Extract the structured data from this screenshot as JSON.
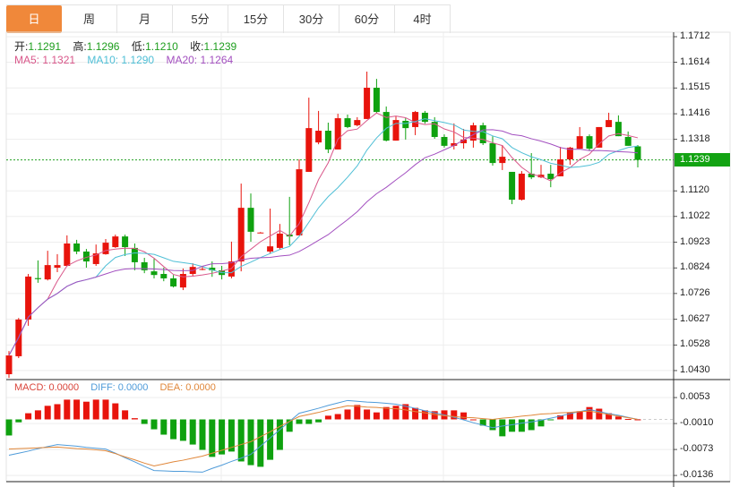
{
  "tabs": [
    {
      "label": "日",
      "active": true
    },
    {
      "label": "周"
    },
    {
      "label": "月"
    },
    {
      "label": "5分"
    },
    {
      "label": "15分"
    },
    {
      "label": "30分"
    },
    {
      "label": "60分"
    },
    {
      "label": "4时"
    }
  ],
  "ohlc": {
    "open_label": "开:",
    "open": "1.1291",
    "high_label": "高:",
    "high": "1.1296",
    "low_label": "低:",
    "low": "1.1210",
    "close_label": "收:",
    "close": "1.1239"
  },
  "ma": {
    "ma5": "MA5: 1.1321",
    "ma10": "MA10: 1.1290",
    "ma20": "MA20: 1.1264"
  },
  "macd_header": {
    "macd": "MACD: 0.0000",
    "diff": "DIFF: 0.0000",
    "dea": "DEA: 0.0000"
  },
  "current_price": "1.1239",
  "colors": {
    "up": "#e8140c",
    "down": "#0fa10f",
    "ma5": "#d9578a",
    "ma10": "#4fbfd6",
    "ma20": "#a350c0",
    "diff": "#4f9bd9",
    "dea": "#e0873a",
    "active_tab": "#f0883a"
  },
  "chart_data": {
    "type": "candlestick",
    "price_ticks": [
      "1.1712",
      "1.1614",
      "1.1515",
      "1.1416",
      "1.1318",
      "1.1120",
      "1.1022",
      "1.0923",
      "1.0824",
      "1.0726",
      "1.0627",
      "1.0528",
      "1.0430"
    ],
    "price_range": [
      1.041,
      1.1712
    ],
    "macd_ticks": [
      "0.0053",
      "-0.0010",
      "-0.0073",
      "-0.0136"
    ],
    "macd_range": [
      -0.015,
      0.0063
    ],
    "candles_ohlc": [
      [
        1.0416,
        1.0505,
        1.0402,
        1.0488
      ],
      [
        1.0485,
        1.0632,
        1.0478,
        1.0626
      ],
      [
        1.0626,
        1.0801,
        1.0602,
        1.0791
      ],
      [
        1.0785,
        1.0853,
        1.0767,
        1.0781
      ],
      [
        1.078,
        1.089,
        1.0776,
        1.0835
      ],
      [
        1.0825,
        1.0877,
        1.0808,
        1.0835
      ],
      [
        1.0832,
        1.0949,
        1.083,
        1.0918
      ],
      [
        1.0918,
        1.0932,
        1.0877,
        1.0887
      ],
      [
        1.0887,
        1.0897,
        1.0825,
        1.0849
      ],
      [
        1.0839,
        1.0914,
        1.0832,
        1.088
      ],
      [
        1.0877,
        1.0935,
        1.0875,
        1.0921
      ],
      [
        1.0904,
        1.0952,
        1.0901,
        1.0945
      ],
      [
        1.0945,
        1.0952,
        1.087,
        1.0904
      ],
      [
        1.0901,
        1.0918,
        1.0815,
        1.0846
      ],
      [
        1.0846,
        1.0863,
        1.0804,
        1.0815
      ],
      [
        1.0811,
        1.0859,
        1.0784,
        1.0797
      ],
      [
        1.0801,
        1.0825,
        1.0773,
        1.0784
      ],
      [
        1.0784,
        1.0797,
        1.0749,
        1.0753
      ],
      [
        1.0749,
        1.0822,
        1.0739,
        1.0801
      ],
      [
        1.0801,
        1.0842,
        1.0794,
        1.0828
      ],
      [
        1.0818,
        1.083,
        1.0815,
        1.082
      ],
      [
        1.0825,
        1.0849,
        1.079,
        1.0815
      ],
      [
        1.0815,
        1.0832,
        1.078,
        1.0797
      ],
      [
        1.0791,
        1.0925,
        1.0784,
        1.0849
      ],
      [
        1.0849,
        1.1148,
        1.0811,
        1.1055
      ],
      [
        1.1055,
        1.111,
        1.0925,
        1.0963
      ],
      [
        1.096,
        1.0962,
        1.0958,
        1.096
      ],
      [
        1.0887,
        1.1052,
        1.088,
        1.0907
      ],
      [
        1.0901,
        1.0993,
        1.0894,
        1.0956
      ],
      [
        1.0952,
        1.1097,
        1.0911,
        1.0945
      ],
      [
        1.0949,
        1.1241,
        1.0949,
        1.1203
      ],
      [
        1.1193,
        1.1478,
        1.1193,
        1.1361
      ],
      [
        1.1306,
        1.1427,
        1.1299,
        1.1351
      ],
      [
        1.1351,
        1.1382,
        1.1265,
        1.1279
      ],
      [
        1.1279,
        1.1416,
        1.1279,
        1.1399
      ],
      [
        1.1399,
        1.1413,
        1.1361,
        1.1365
      ],
      [
        1.1372,
        1.1403,
        1.1368,
        1.1392
      ],
      [
        1.1396,
        1.1578,
        1.1396,
        1.1516
      ],
      [
        1.1516,
        1.155,
        1.142,
        1.1423
      ],
      [
        1.1423,
        1.1444,
        1.131,
        1.1313
      ],
      [
        1.1313,
        1.1406,
        1.1313,
        1.1392
      ],
      [
        1.1389,
        1.1399,
        1.1317,
        1.1361
      ],
      [
        1.1365,
        1.1427,
        1.1334,
        1.1423
      ],
      [
        1.142,
        1.1427,
        1.1378,
        1.1385
      ],
      [
        1.1385,
        1.1403,
        1.132,
        1.1327
      ],
      [
        1.1327,
        1.1337,
        1.1286,
        1.1293
      ],
      [
        1.1293,
        1.1379,
        1.1279,
        1.1303
      ],
      [
        1.1303,
        1.1358,
        1.1282,
        1.1317
      ],
      [
        1.1313,
        1.1382,
        1.1286,
        1.1372
      ],
      [
        1.1372,
        1.1382,
        1.1296,
        1.1303
      ],
      [
        1.1303,
        1.133,
        1.1217,
        1.1227
      ],
      [
        1.1227,
        1.1296,
        1.12,
        1.1251
      ],
      [
        1.1193,
        1.1193,
        1.1069,
        1.1086
      ],
      [
        1.1086,
        1.1196,
        1.1083,
        1.1186
      ],
      [
        1.1186,
        1.1265,
        1.1165,
        1.1172
      ],
      [
        1.1172,
        1.122,
        1.1169,
        1.1182
      ],
      [
        1.1186,
        1.122,
        1.1134,
        1.1165
      ],
      [
        1.1176,
        1.1289,
        1.1176,
        1.1241
      ],
      [
        1.1241,
        1.1289,
        1.122,
        1.1286
      ],
      [
        1.1282,
        1.1365,
        1.1282,
        1.133
      ],
      [
        1.133,
        1.1337,
        1.1275,
        1.1282
      ],
      [
        1.1286,
        1.1365,
        1.1286,
        1.1365
      ],
      [
        1.1365,
        1.142,
        1.1365,
        1.1392
      ],
      [
        1.1385,
        1.141,
        1.133,
        1.133
      ],
      [
        1.1327,
        1.1348,
        1.1293,
        1.1293
      ],
      [
        1.1291,
        1.1296,
        1.121,
        1.1239
      ]
    ],
    "macd_hist": [
      -0.0039,
      -0.0007,
      0.0015,
      0.0022,
      0.0033,
      0.0037,
      0.0048,
      0.0048,
      0.0043,
      0.0048,
      0.0048,
      0.0039,
      0.0022,
      0.0003,
      -0.0011,
      -0.0024,
      -0.0037,
      -0.0048,
      -0.0052,
      -0.0061,
      -0.0074,
      -0.0091,
      -0.0085,
      -0.0078,
      -0.0102,
      -0.0111,
      -0.0115,
      -0.0098,
      -0.0074,
      -0.003,
      -0.0011,
      -0.0011,
      -0.0007,
      0.0009,
      0.0013,
      0.0024,
      0.0035,
      0.0024,
      0.0017,
      0.003,
      0.0033,
      0.0037,
      0.0028,
      0.0022,
      0.002,
      0.0022,
      0.0022,
      0.0017,
      0.0,
      -0.0015,
      -0.0026,
      -0.0041,
      -0.003,
      -0.003,
      -0.0026,
      -0.0017,
      -0.0001,
      0.001,
      0.0017,
      0.002,
      0.003,
      0.0026,
      0.0015,
      0.0007,
      0.0001,
      0.0
    ],
    "diff": [
      -0.0087,
      -0.0082,
      -0.0077,
      -0.0071,
      -0.0066,
      -0.0061,
      -0.0063,
      -0.0065,
      -0.0068,
      -0.007,
      -0.0072,
      -0.0082,
      -0.0093,
      -0.0103,
      -0.0114,
      -0.0124,
      -0.0125,
      -0.0126,
      -0.0126,
      -0.0127,
      -0.0128,
      -0.0119,
      -0.0111,
      -0.0102,
      -0.0094,
      -0.0085,
      -0.0065,
      -0.0045,
      -0.0025,
      -0.0005,
      0.0015,
      0.0021,
      0.0027,
      0.0034,
      0.004,
      0.0046,
      0.0044,
      0.0042,
      0.0041,
      0.0039,
      0.0037,
      0.0032,
      0.0027,
      0.0021,
      0.0016,
      0.0011,
      0.0005,
      -0.0001,
      -0.0008,
      -0.0014,
      -0.002,
      -0.0016,
      -0.0013,
      -0.0009,
      -0.0006,
      -0.0002,
      0.0003,
      0.0008,
      0.0014,
      0.0019,
      0.0024,
      0.0019,
      0.0014,
      0.001,
      0.0005,
      0.0
    ],
    "dea": [
      -0.0072,
      -0.0071,
      -0.007,
      -0.0069,
      -0.0068,
      -0.0067,
      -0.0069,
      -0.0071,
      -0.0072,
      -0.0074,
      -0.0076,
      -0.0083,
      -0.0091,
      -0.0098,
      -0.0106,
      -0.0113,
      -0.0108,
      -0.0103,
      -0.0099,
      -0.0094,
      -0.0089,
      -0.0082,
      -0.0075,
      -0.0068,
      -0.0061,
      -0.0054,
      -0.0042,
      -0.003,
      -0.0017,
      -0.0005,
      0.0007,
      0.0012,
      0.0017,
      0.0023,
      0.0028,
      0.0033,
      0.0032,
      0.003,
      0.0029,
      0.0027,
      0.0026,
      0.0023,
      0.0019,
      0.0016,
      0.0012,
      0.0009,
      0.0007,
      0.0005,
      0.0004,
      0.0002,
      0.0,
      0.0003,
      0.0005,
      0.0008,
      0.001,
      0.0013,
      0.0014,
      0.0016,
      0.0017,
      0.0019,
      0.002,
      0.0016,
      0.0012,
      0.0008,
      0.0004,
      0.0
    ],
    "grid": true
  }
}
